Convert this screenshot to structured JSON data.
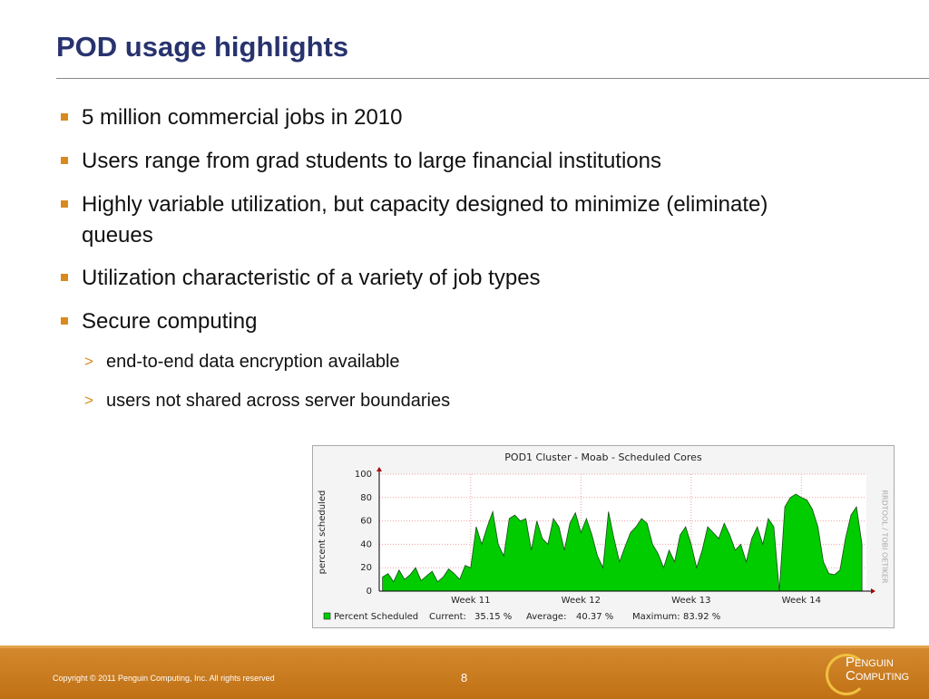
{
  "title": "POD usage highlights",
  "bullets": [
    "5 million commercial jobs in 2010",
    "Users range from grad students to large financial institutions",
    "Highly variable utilization, but capacity designed to minimize (eliminate) queues",
    "Utilization characteristic of a variety of job types",
    "Secure computing"
  ],
  "sub_bullets": [
    "end-to-end data encryption available",
    "users not shared across server boundaries"
  ],
  "chart_data": {
    "type": "area",
    "title": "POD1 Cluster - Moab - Scheduled Cores",
    "y_label": "percent scheduled",
    "side_label": "RRDTOOL / TOBI OETIKER",
    "xlim": [
      10.17,
      14.59
    ],
    "xticks": [
      {
        "value": 11,
        "label": "Week 11"
      },
      {
        "value": 12,
        "label": "Week 12"
      },
      {
        "value": 13,
        "label": "Week 13"
      },
      {
        "value": 14,
        "label": "Week 14"
      }
    ],
    "ylim": [
      0,
      100
    ],
    "yticks": [
      0,
      20,
      40,
      60,
      80,
      100
    ],
    "grid": true,
    "x": [
      10.2,
      10.25,
      10.3,
      10.35,
      10.4,
      10.45,
      10.5,
      10.55,
      10.6,
      10.65,
      10.7,
      10.75,
      10.8,
      10.85,
      10.9,
      10.95,
      11.0,
      11.05,
      11.1,
      11.15,
      11.2,
      11.25,
      11.3,
      11.35,
      11.4,
      11.45,
      11.5,
      11.55,
      11.6,
      11.65,
      11.7,
      11.75,
      11.8,
      11.85,
      11.9,
      11.95,
      12.0,
      12.05,
      12.1,
      12.15,
      12.2,
      12.25,
      12.3,
      12.35,
      12.4,
      12.45,
      12.5,
      12.55,
      12.6,
      12.65,
      12.7,
      12.75,
      12.8,
      12.85,
      12.9,
      12.95,
      13.0,
      13.05,
      13.1,
      13.15,
      13.2,
      13.25,
      13.3,
      13.35,
      13.4,
      13.45,
      13.5,
      13.55,
      13.6,
      13.65,
      13.7,
      13.75,
      13.8,
      13.85,
      13.9,
      13.95,
      14.0,
      14.05,
      14.1,
      14.15,
      14.2,
      14.25,
      14.3,
      14.35,
      14.4,
      14.45,
      14.5,
      14.55
    ],
    "series": [
      {
        "name": "Percent Scheduled",
        "color": "#00cc00",
        "values": [
          12,
          15,
          8,
          18,
          10,
          14,
          20,
          9,
          13,
          17,
          8,
          12,
          19,
          15,
          10,
          22,
          20,
          55,
          40,
          55,
          68,
          40,
          30,
          62,
          65,
          60,
          62,
          35,
          60,
          45,
          40,
          62,
          55,
          35,
          58,
          67,
          50,
          62,
          48,
          30,
          20,
          68,
          45,
          25,
          38,
          50,
          55,
          62,
          58,
          40,
          32,
          20,
          35,
          25,
          48,
          55,
          40,
          20,
          35,
          55,
          50,
          45,
          58,
          48,
          35,
          40,
          25,
          45,
          55,
          40,
          62,
          55,
          0,
          72,
          80,
          83,
          80,
          78,
          70,
          55,
          25,
          15,
          14,
          18,
          45,
          65,
          72,
          40
        ]
      }
    ],
    "stats": [
      "Current:",
      "35.15 %",
      "Average:",
      "40.37 %",
      "Maximum:",
      "83.92 %"
    ]
  },
  "footer": {
    "copyright": "Copyright © 2011 Penguin Computing, Inc. All rights reserved",
    "page": "8",
    "logo": [
      "Penguin",
      "Computing"
    ]
  }
}
